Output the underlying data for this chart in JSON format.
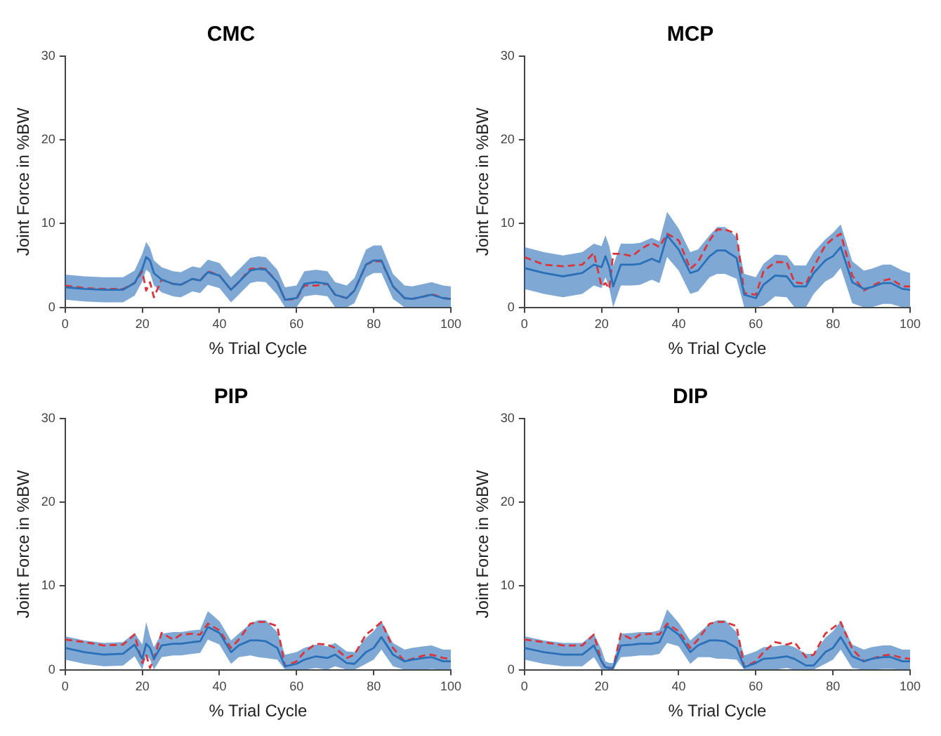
{
  "chart_data": [
    {
      "type": "line",
      "title": "CMC",
      "xlabel": "% Trial Cycle",
      "ylabel": "Joint Force in %BW",
      "xlim": [
        0,
        100
      ],
      "xticks": [
        0,
        20,
        40,
        60,
        80,
        100
      ],
      "ylim": [
        0,
        30
      ],
      "yticks": [
        0,
        10,
        20,
        30
      ],
      "grid": false,
      "legend": false,
      "marker": "none",
      "x": [
        0,
        5,
        10,
        15,
        18,
        20,
        21,
        22,
        23,
        25,
        28,
        30,
        33,
        35,
        37,
        40,
        43,
        45,
        48,
        50,
        52,
        55,
        57,
        60,
        62,
        65,
        68,
        70,
        73,
        75,
        78,
        80,
        82,
        85,
        88,
        90,
        93,
        95,
        98,
        100
      ],
      "series": [
        {
          "color": "#2a70b8",
          "line_style": "solid",
          "values": [
            2.4,
            2.2,
            2.1,
            2.1,
            2.9,
            4.6,
            6.0,
            5.6,
            4.1,
            3.3,
            2.8,
            2.7,
            3.4,
            3.2,
            4.2,
            3.8,
            2.1,
            3.0,
            4.4,
            4.6,
            4.5,
            3.0,
            0.9,
            1.1,
            2.8,
            3.0,
            2.8,
            1.5,
            1.1,
            2.0,
            5.1,
            5.6,
            5.6,
            2.5,
            1.1,
            1.0,
            1.3,
            1.5,
            1.1,
            1.0
          ],
          "lower": [
            0.9,
            0.7,
            0.6,
            0.6,
            1.4,
            3.1,
            4.5,
            4.1,
            2.6,
            1.8,
            1.3,
            1.2,
            1.9,
            1.7,
            2.7,
            2.3,
            0.6,
            1.5,
            2.9,
            3.1,
            3.0,
            1.5,
            0,
            0,
            1.3,
            1.5,
            1.3,
            0,
            0,
            0.5,
            3.6,
            4.1,
            4.1,
            1.0,
            0,
            0,
            0,
            0,
            0,
            0
          ],
          "upper": [
            3.9,
            3.7,
            3.6,
            3.6,
            4.4,
            6.4,
            7.8,
            7.1,
            5.6,
            4.8,
            4.3,
            4.2,
            4.9,
            4.7,
            5.7,
            5.3,
            3.6,
            4.5,
            5.9,
            6.1,
            6.0,
            4.5,
            2.4,
            2.6,
            4.3,
            4.5,
            4.3,
            3.0,
            2.6,
            3.5,
            6.9,
            7.4,
            7.4,
            4.0,
            2.6,
            2.5,
            2.8,
            3.0,
            2.6,
            2.5
          ]
        },
        {
          "color": "#d9353a",
          "line_style": "dashed",
          "values": [
            2.6,
            2.3,
            2.2,
            2.2,
            2.9,
            4.3,
            2.0,
            3.0,
            1.2,
            3.3,
            2.8,
            2.7,
            3.4,
            3.2,
            4.3,
            3.8,
            2.1,
            3.0,
            4.6,
            4.7,
            4.6,
            3.0,
            0.9,
            1.0,
            2.6,
            2.6,
            2.8,
            1.5,
            1.1,
            2.0,
            5.1,
            5.5,
            5.5,
            2.5,
            1.1,
            1.0,
            1.3,
            1.6,
            1.1,
            1.0
          ]
        }
      ]
    },
    {
      "type": "line",
      "title": "MCP",
      "xlabel": "% Trial Cycle",
      "ylabel": "Joint Force in %BW",
      "xlim": [
        0,
        100
      ],
      "xticks": [
        0,
        20,
        40,
        60,
        80,
        100
      ],
      "ylim": [
        0,
        30
      ],
      "yticks": [
        0,
        10,
        20,
        30
      ],
      "grid": false,
      "legend": false,
      "marker": "none",
      "x": [
        0,
        5,
        10,
        15,
        18,
        20,
        21,
        22,
        23,
        25,
        28,
        30,
        33,
        35,
        37,
        40,
        43,
        45,
        48,
        50,
        52,
        55,
        57,
        60,
        62,
        65,
        68,
        70,
        73,
        75,
        78,
        80,
        82,
        85,
        88,
        90,
        93,
        95,
        98,
        100
      ],
      "series": [
        {
          "color": "#2a70b8",
          "line_style": "solid",
          "values": [
            4.7,
            4.1,
            3.7,
            4.1,
            5.1,
            4.8,
            6.1,
            4.8,
            2.5,
            5.1,
            5.1,
            5.2,
            5.8,
            5.4,
            8.6,
            6.9,
            4.1,
            4.4,
            6.1,
            6.8,
            6.8,
            5.9,
            1.5,
            1.1,
            2.7,
            3.8,
            3.7,
            2.5,
            2.5,
            4.1,
            5.6,
            6.1,
            7.2,
            3.0,
            2.2,
            2.4,
            2.9,
            2.9,
            2.2,
            2.1
          ],
          "lower": [
            2.2,
            1.6,
            1.2,
            1.6,
            2.6,
            2.3,
            3.6,
            2.3,
            0,
            2.6,
            2.6,
            2.7,
            3.3,
            2.9,
            6.0,
            4.4,
            1.6,
            1.9,
            3.6,
            4.0,
            4.0,
            3.4,
            0,
            0,
            0.2,
            1.3,
            1.2,
            0,
            0,
            1.6,
            3.1,
            3.6,
            4.7,
            0.5,
            0,
            0,
            0.4,
            0.4,
            0,
            0
          ],
          "upper": [
            7.2,
            6.6,
            6.2,
            6.6,
            7.6,
            7.3,
            8.6,
            7.3,
            5.0,
            7.6,
            7.6,
            7.7,
            8.3,
            7.9,
            11.4,
            9.4,
            6.6,
            6.9,
            8.6,
            9.6,
            9.6,
            8.4,
            4.0,
            3.6,
            5.2,
            6.3,
            6.2,
            5.0,
            5.0,
            6.6,
            8.1,
            8.9,
            9.9,
            5.5,
            4.4,
            4.6,
            5.1,
            5.1,
            4.4,
            4.1
          ]
        },
        {
          "color": "#d9353a",
          "line_style": "dashed",
          "values": [
            6.0,
            5.1,
            4.9,
            5.1,
            6.5,
            2.5,
            2.9,
            2.2,
            6.4,
            6.4,
            6.1,
            6.9,
            7.7,
            7.2,
            8.8,
            8.0,
            4.6,
            5.4,
            8.0,
            9.3,
            9.3,
            8.8,
            1.7,
            1.5,
            4.3,
            5.4,
            5.4,
            3.0,
            2.8,
            4.8,
            7.4,
            8.2,
            8.8,
            3.8,
            2.0,
            2.5,
            3.2,
            3.4,
            2.5,
            2.5
          ]
        }
      ]
    },
    {
      "type": "line",
      "title": "PIP",
      "xlabel": "% Trial Cycle",
      "ylabel": "Joint Force in %BW",
      "xlim": [
        0,
        100
      ],
      "xticks": [
        0,
        20,
        40,
        60,
        80,
        100
      ],
      "ylim": [
        0,
        30
      ],
      "yticks": [
        0,
        10,
        20,
        30
      ],
      "grid": false,
      "legend": false,
      "marker": "none",
      "x": [
        0,
        5,
        10,
        15,
        18,
        20,
        21,
        22,
        23,
        25,
        28,
        30,
        33,
        35,
        37,
        40,
        43,
        45,
        48,
        50,
        52,
        55,
        57,
        60,
        62,
        65,
        68,
        70,
        73,
        75,
        78,
        80,
        82,
        85,
        88,
        90,
        93,
        95,
        98,
        100
      ],
      "series": [
        {
          "color": "#2a70b8",
          "line_style": "solid",
          "values": [
            2.6,
            2.1,
            1.8,
            1.9,
            3.0,
            1.3,
            3.1,
            2.6,
            1.3,
            2.9,
            3.1,
            3.1,
            3.3,
            3.4,
            5.1,
            4.4,
            2.1,
            2.9,
            3.5,
            3.5,
            3.4,
            2.6,
            0.4,
            0.7,
            1.2,
            1.6,
            1.4,
            1.8,
            0.8,
            0.7,
            2.1,
            2.6,
            3.9,
            1.8,
            1.0,
            1.2,
            1.4,
            1.5,
            1.0,
            1.0
          ],
          "lower": [
            1.2,
            0.7,
            0.4,
            0.5,
            1.6,
            0,
            1.8,
            1.2,
            0,
            1.5,
            1.7,
            1.7,
            1.9,
            2.0,
            3.6,
            3.0,
            0.7,
            1.5,
            1.7,
            1.5,
            1.4,
            1.2,
            0,
            0,
            0,
            0.2,
            0,
            0.4,
            0,
            0,
            0.7,
            1.2,
            2.4,
            0.4,
            0,
            0,
            0,
            0.1,
            0,
            0
          ],
          "upper": [
            4.0,
            3.5,
            3.2,
            3.3,
            4.4,
            3.0,
            5.7,
            4.0,
            2.7,
            4.3,
            4.5,
            4.5,
            4.7,
            4.8,
            7.0,
            5.8,
            3.5,
            4.3,
            5.5,
            5.9,
            5.9,
            4.5,
            1.8,
            2.1,
            2.6,
            3.0,
            2.8,
            3.2,
            2.2,
            2.1,
            3.8,
            4.6,
            5.8,
            3.2,
            2.4,
            2.6,
            2.8,
            2.9,
            2.4,
            2.4
          ]
        },
        {
          "color": "#d9353a",
          "line_style": "dashed",
          "values": [
            3.6,
            3.3,
            2.9,
            3.0,
            4.2,
            0.8,
            1.8,
            0.2,
            1.3,
            4.4,
            3.6,
            4.2,
            4.3,
            4.2,
            5.5,
            4.7,
            2.6,
            3.6,
            5.5,
            5.7,
            5.7,
            5.2,
            0.4,
            1.0,
            2.1,
            3.1,
            3.0,
            2.6,
            1.4,
            1.8,
            4.2,
            4.9,
            5.7,
            2.6,
            1.0,
            1.3,
            1.7,
            1.8,
            1.4,
            1.3
          ]
        }
      ]
    },
    {
      "type": "line",
      "title": "DIP",
      "xlabel": "% Trial Cycle",
      "ylabel": "Joint Force in %BW",
      "xlim": [
        0,
        100
      ],
      "xticks": [
        0,
        20,
        40,
        60,
        80,
        100
      ],
      "ylim": [
        0,
        30
      ],
      "yticks": [
        0,
        10,
        20,
        30
      ],
      "grid": false,
      "legend": false,
      "marker": "none",
      "x": [
        0,
        5,
        10,
        15,
        18,
        20,
        21,
        22,
        23,
        25,
        28,
        30,
        33,
        35,
        37,
        40,
        43,
        45,
        48,
        50,
        52,
        55,
        57,
        60,
        62,
        65,
        68,
        70,
        73,
        75,
        78,
        80,
        82,
        85,
        88,
        90,
        93,
        95,
        98,
        100
      ],
      "series": [
        {
          "color": "#2a70b8",
          "line_style": "solid",
          "values": [
            2.6,
            2.1,
            1.8,
            1.8,
            2.9,
            1.0,
            0.3,
            0.2,
            0.2,
            2.9,
            3.0,
            3.1,
            3.1,
            3.3,
            5.2,
            4.2,
            2.1,
            2.9,
            3.5,
            3.5,
            3.4,
            2.6,
            0.3,
            0.8,
            1.3,
            1.4,
            1.6,
            1.3,
            0.5,
            0.5,
            2.1,
            2.6,
            3.9,
            1.6,
            1.0,
            1.3,
            1.5,
            1.5,
            1.0,
            1.0
          ],
          "lower": [
            1.2,
            0.7,
            0.4,
            0.4,
            1.5,
            0,
            0,
            0,
            0,
            1.5,
            1.6,
            1.7,
            1.7,
            1.9,
            3.2,
            2.8,
            0.7,
            1.5,
            1.5,
            1.3,
            1.3,
            1.2,
            0,
            0,
            0,
            0,
            0.2,
            0,
            0,
            0,
            0.7,
            1.2,
            2.4,
            0.2,
            0,
            0,
            0.1,
            0.1,
            0,
            0
          ],
          "upper": [
            4.0,
            3.5,
            3.2,
            3.2,
            4.3,
            2.4,
            1.0,
            0.8,
            0.8,
            4.3,
            4.4,
            4.5,
            4.5,
            4.7,
            7.2,
            5.6,
            3.5,
            4.3,
            5.5,
            5.9,
            5.9,
            4.5,
            1.7,
            2.2,
            2.7,
            2.8,
            3.0,
            2.7,
            1.9,
            1.9,
            3.8,
            4.6,
            5.8,
            3.0,
            2.4,
            2.7,
            2.9,
            2.9,
            2.4,
            2.4
          ]
        },
        {
          "color": "#d9353a",
          "line_style": "dashed",
          "values": [
            3.6,
            3.3,
            2.9,
            2.9,
            4.2,
            1.0,
            0.2,
            0.2,
            0.2,
            4.3,
            3.6,
            4.2,
            4.3,
            4.2,
            5.5,
            4.6,
            2.6,
            3.6,
            5.5,
            5.7,
            5.7,
            5.2,
            0.3,
            1.0,
            2.1,
            3.3,
            3.0,
            3.3,
            1.5,
            1.8,
            4.3,
            5.0,
            5.7,
            2.5,
            1.0,
            1.3,
            1.7,
            1.8,
            1.4,
            1.3
          ]
        }
      ]
    }
  ]
}
